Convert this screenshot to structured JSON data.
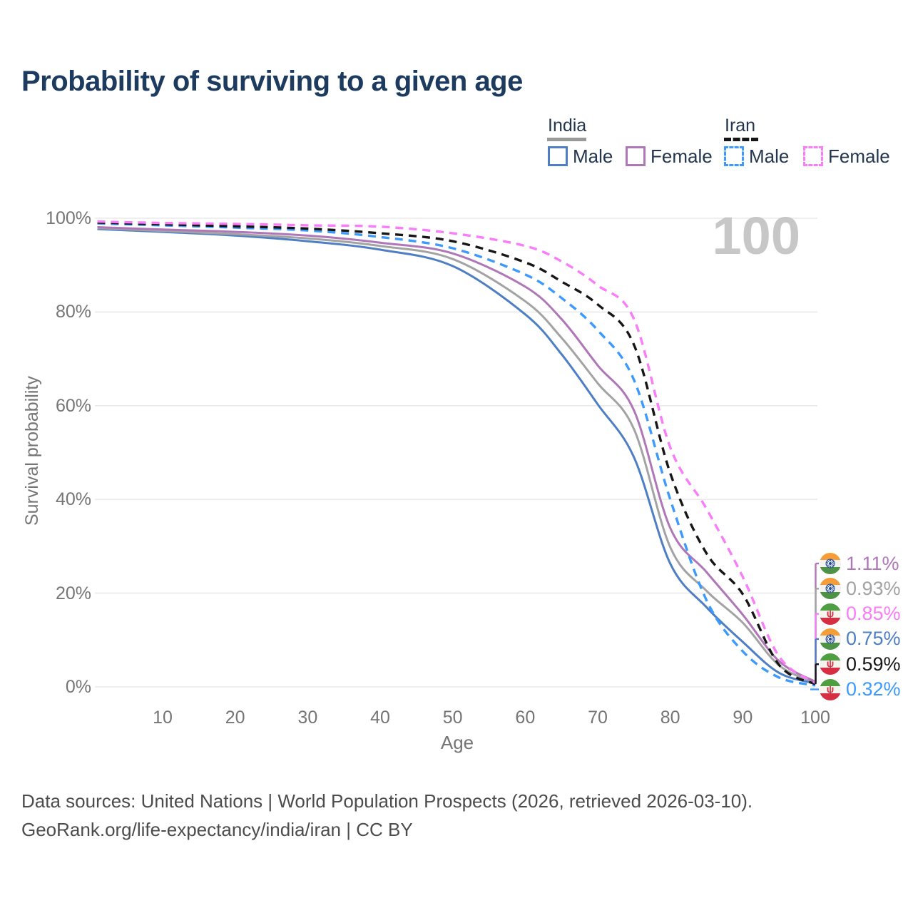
{
  "title": "Probability of surviving to a given age",
  "watermark": "100",
  "legend": {
    "groups": [
      {
        "label": "India",
        "underline_style": "solid",
        "underline_color": "#999999",
        "items": [
          {
            "label": "Male",
            "color": "#4e7fc4",
            "dash": false
          },
          {
            "label": "Female",
            "color": "#b077b8",
            "dash": false
          }
        ]
      },
      {
        "label": "Iran",
        "underline_style": "dashed",
        "underline_color": "#161616",
        "items": [
          {
            "label": "Male",
            "color": "#3d9afd",
            "dash": true
          },
          {
            "label": "Female",
            "color": "#f97cf9",
            "dash": true
          }
        ]
      }
    ]
  },
  "chart_data": {
    "type": "line",
    "title": "Probability of surviving to a given age",
    "xlabel": "Age",
    "ylabel": "Survival probability",
    "xlim": [
      1,
      108
    ],
    "ylim": [
      0,
      100
    ],
    "grid": "horizontal",
    "legend_position": "top-right",
    "x_tick_values": [
      10,
      20,
      30,
      40,
      50,
      60,
      70,
      80,
      90,
      100
    ],
    "x_tick_labels": [
      "10",
      "20",
      "30",
      "40",
      "50",
      "60",
      "70",
      "80",
      "90",
      "100"
    ],
    "y_ticks": [
      {
        "pct": 100,
        "label": "100%"
      },
      {
        "pct": 80,
        "label": "80%"
      },
      {
        "pct": 60,
        "label": "60%"
      },
      {
        "pct": 40,
        "label": "40%"
      },
      {
        "pct": 20,
        "label": "20%"
      },
      {
        "pct": 0,
        "label": "0%"
      }
    ],
    "x": [
      1,
      10,
      20,
      30,
      40,
      50,
      60,
      65,
      70,
      75,
      80,
      85,
      90,
      95,
      100
    ],
    "series": [
      {
        "name": "India Male",
        "color": "#4e7fc4",
        "dash": false,
        "values": [
          97.7,
          97.1,
          96.3,
          95.1,
          93.3,
          89.8,
          79.5,
          71.0,
          60.3,
          49.0,
          26.3,
          17.0,
          9.6,
          3.0,
          0.75
        ]
      },
      {
        "name": "India Both sexes",
        "color": "#a3a3a3",
        "dash": false,
        "values": [
          97.9,
          97.3,
          96.6,
          95.7,
          94.1,
          91.3,
          82.3,
          74.5,
          64.8,
          55.0,
          29.8,
          20.5,
          13.7,
          4.6,
          0.93
        ]
      },
      {
        "name": "India Female",
        "color": "#b077b8",
        "dash": false,
        "values": [
          98.1,
          97.6,
          97.1,
          96.3,
          94.8,
          92.5,
          85.4,
          78.5,
          68.6,
          59.0,
          33.9,
          24.5,
          15.4,
          5.5,
          1.11
        ]
      },
      {
        "name": "Iran Male",
        "color": "#3d9afd",
        "dash": true,
        "values": [
          98.9,
          98.5,
          98.0,
          97.4,
          96.0,
          93.6,
          88.0,
          83.0,
          76.1,
          65.5,
          40.0,
          18.5,
          7.6,
          2.0,
          0.32
        ]
      },
      {
        "name": "Iran Both sexes",
        "color": "#161616",
        "dash": true,
        "values": [
          99.1,
          98.7,
          98.3,
          97.8,
          96.8,
          95.1,
          90.6,
          86.5,
          81.6,
          73.0,
          45.6,
          28.5,
          19.8,
          4.7,
          0.59
        ]
      },
      {
        "name": "Iran Female",
        "color": "#f97cf9",
        "dash": true,
        "values": [
          99.3,
          99.0,
          98.8,
          98.5,
          98.2,
          96.8,
          94.1,
          90.8,
          85.7,
          78.5,
          51.1,
          38.0,
          23.5,
          6.5,
          0.85
        ]
      }
    ],
    "end_labels": [
      {
        "label": "1.11%",
        "pct": 1.11,
        "color": "#b077b8",
        "flag": "india",
        "series": "India Female"
      },
      {
        "label": "0.93%",
        "pct": 0.93,
        "color": "#a3a3a3",
        "flag": "india",
        "series": "India Both sexes"
      },
      {
        "label": "0.85%",
        "pct": 0.85,
        "color": "#f97cf9",
        "flag": "iran",
        "series": "Iran Female"
      },
      {
        "label": "0.75%",
        "pct": 0.75,
        "color": "#4e7fc4",
        "flag": "india",
        "series": "India Male"
      },
      {
        "label": "0.59%",
        "pct": 0.59,
        "color": "#161616",
        "flag": "iran",
        "series": "Iran Both sexes"
      },
      {
        "label": "0.32%",
        "pct": 0.32,
        "color": "#3d9afd",
        "flag": "iran",
        "series": "Iran Male"
      }
    ]
  },
  "footer": {
    "line1": "Data sources: United Nations | World Population Prospects (2026, retrieved 2026-03-10).",
    "line2": "GeoRank.org/life-expectancy/india/iran | CC BY"
  }
}
